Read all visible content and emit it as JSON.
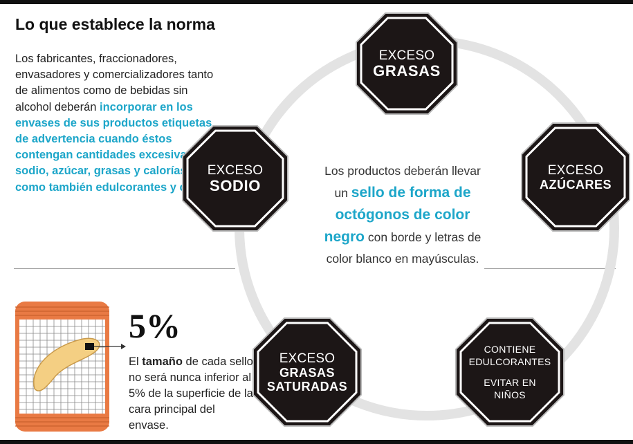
{
  "heading": "Lo que establece la norma",
  "intro": {
    "plain": "Los fabricantes, fraccionadores, envasadores  y comercializadores tanto de alimentos como de bebidas sin alcohol deberán ",
    "highlight": "incorporar en los envases de sus productos etiquetas de advertencia cuando éstos contengan cantidades excesivas de sodio, azúcar, grasas y calorías, así como también edulcorantes y cafeína"
  },
  "seals": {
    "grasas": {
      "line1": "EXCESO",
      "line2": "GRASAS"
    },
    "azucares": {
      "line1": "EXCESO",
      "line2": "AZÚCARES"
    },
    "sodio": {
      "line1": "EXCESO",
      "line2": "SODIO"
    },
    "saturadas": {
      "line1": "EXCESO",
      "line2": "GRASAS",
      "line3": "SATURADAS"
    },
    "edulcorantes": {
      "line1": "CONTIENE",
      "line2": "EDULCORANTES",
      "line3": "EVITAR EN",
      "line4": "NIÑOS"
    }
  },
  "center": {
    "p1": "Los productos deberán llevar un ",
    "highlight": "sello de forma de octógonos de color negro",
    "p2": " con borde y letras de color blanco en mayúsculas."
  },
  "size_note": {
    "percent": "5%",
    "t1": "El ",
    "bold": "tamaño",
    "t2": " de cada sello no será nunca inferior al 5% de la superficie de la cara principal del envase."
  },
  "colors": {
    "highlight": "#1da6c9",
    "seal": "#1c1616",
    "ring": "#e3e3e3",
    "package": "#e97a44"
  }
}
